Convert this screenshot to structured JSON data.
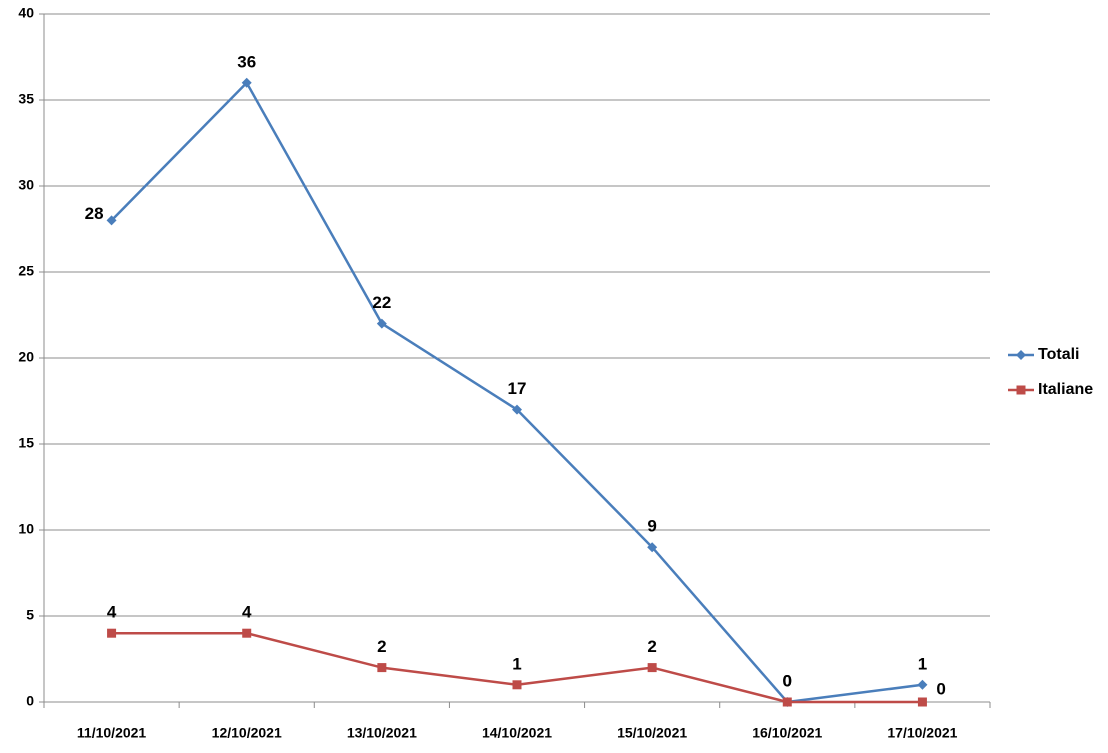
{
  "chart_data": {
    "type": "line",
    "categories": [
      "11/10/2021",
      "12/10/2021",
      "13/10/2021",
      "14/10/2021",
      "15/10/2021",
      "16/10/2021",
      "17/10/2021"
    ],
    "series": [
      {
        "name": "Totali",
        "color": "#4a7ebb",
        "marker": "diamond",
        "values": [
          28,
          36,
          22,
          17,
          9,
          0,
          1
        ]
      },
      {
        "name": "Italiane",
        "color": "#be4b48",
        "marker": "square",
        "values": [
          4,
          4,
          2,
          1,
          2,
          0,
          0
        ]
      }
    ],
    "ylim": [
      0,
      40
    ],
    "yticks": [
      0,
      5,
      10,
      15,
      20,
      25,
      30,
      35,
      40
    ],
    "grid": true,
    "legend": "right"
  }
}
